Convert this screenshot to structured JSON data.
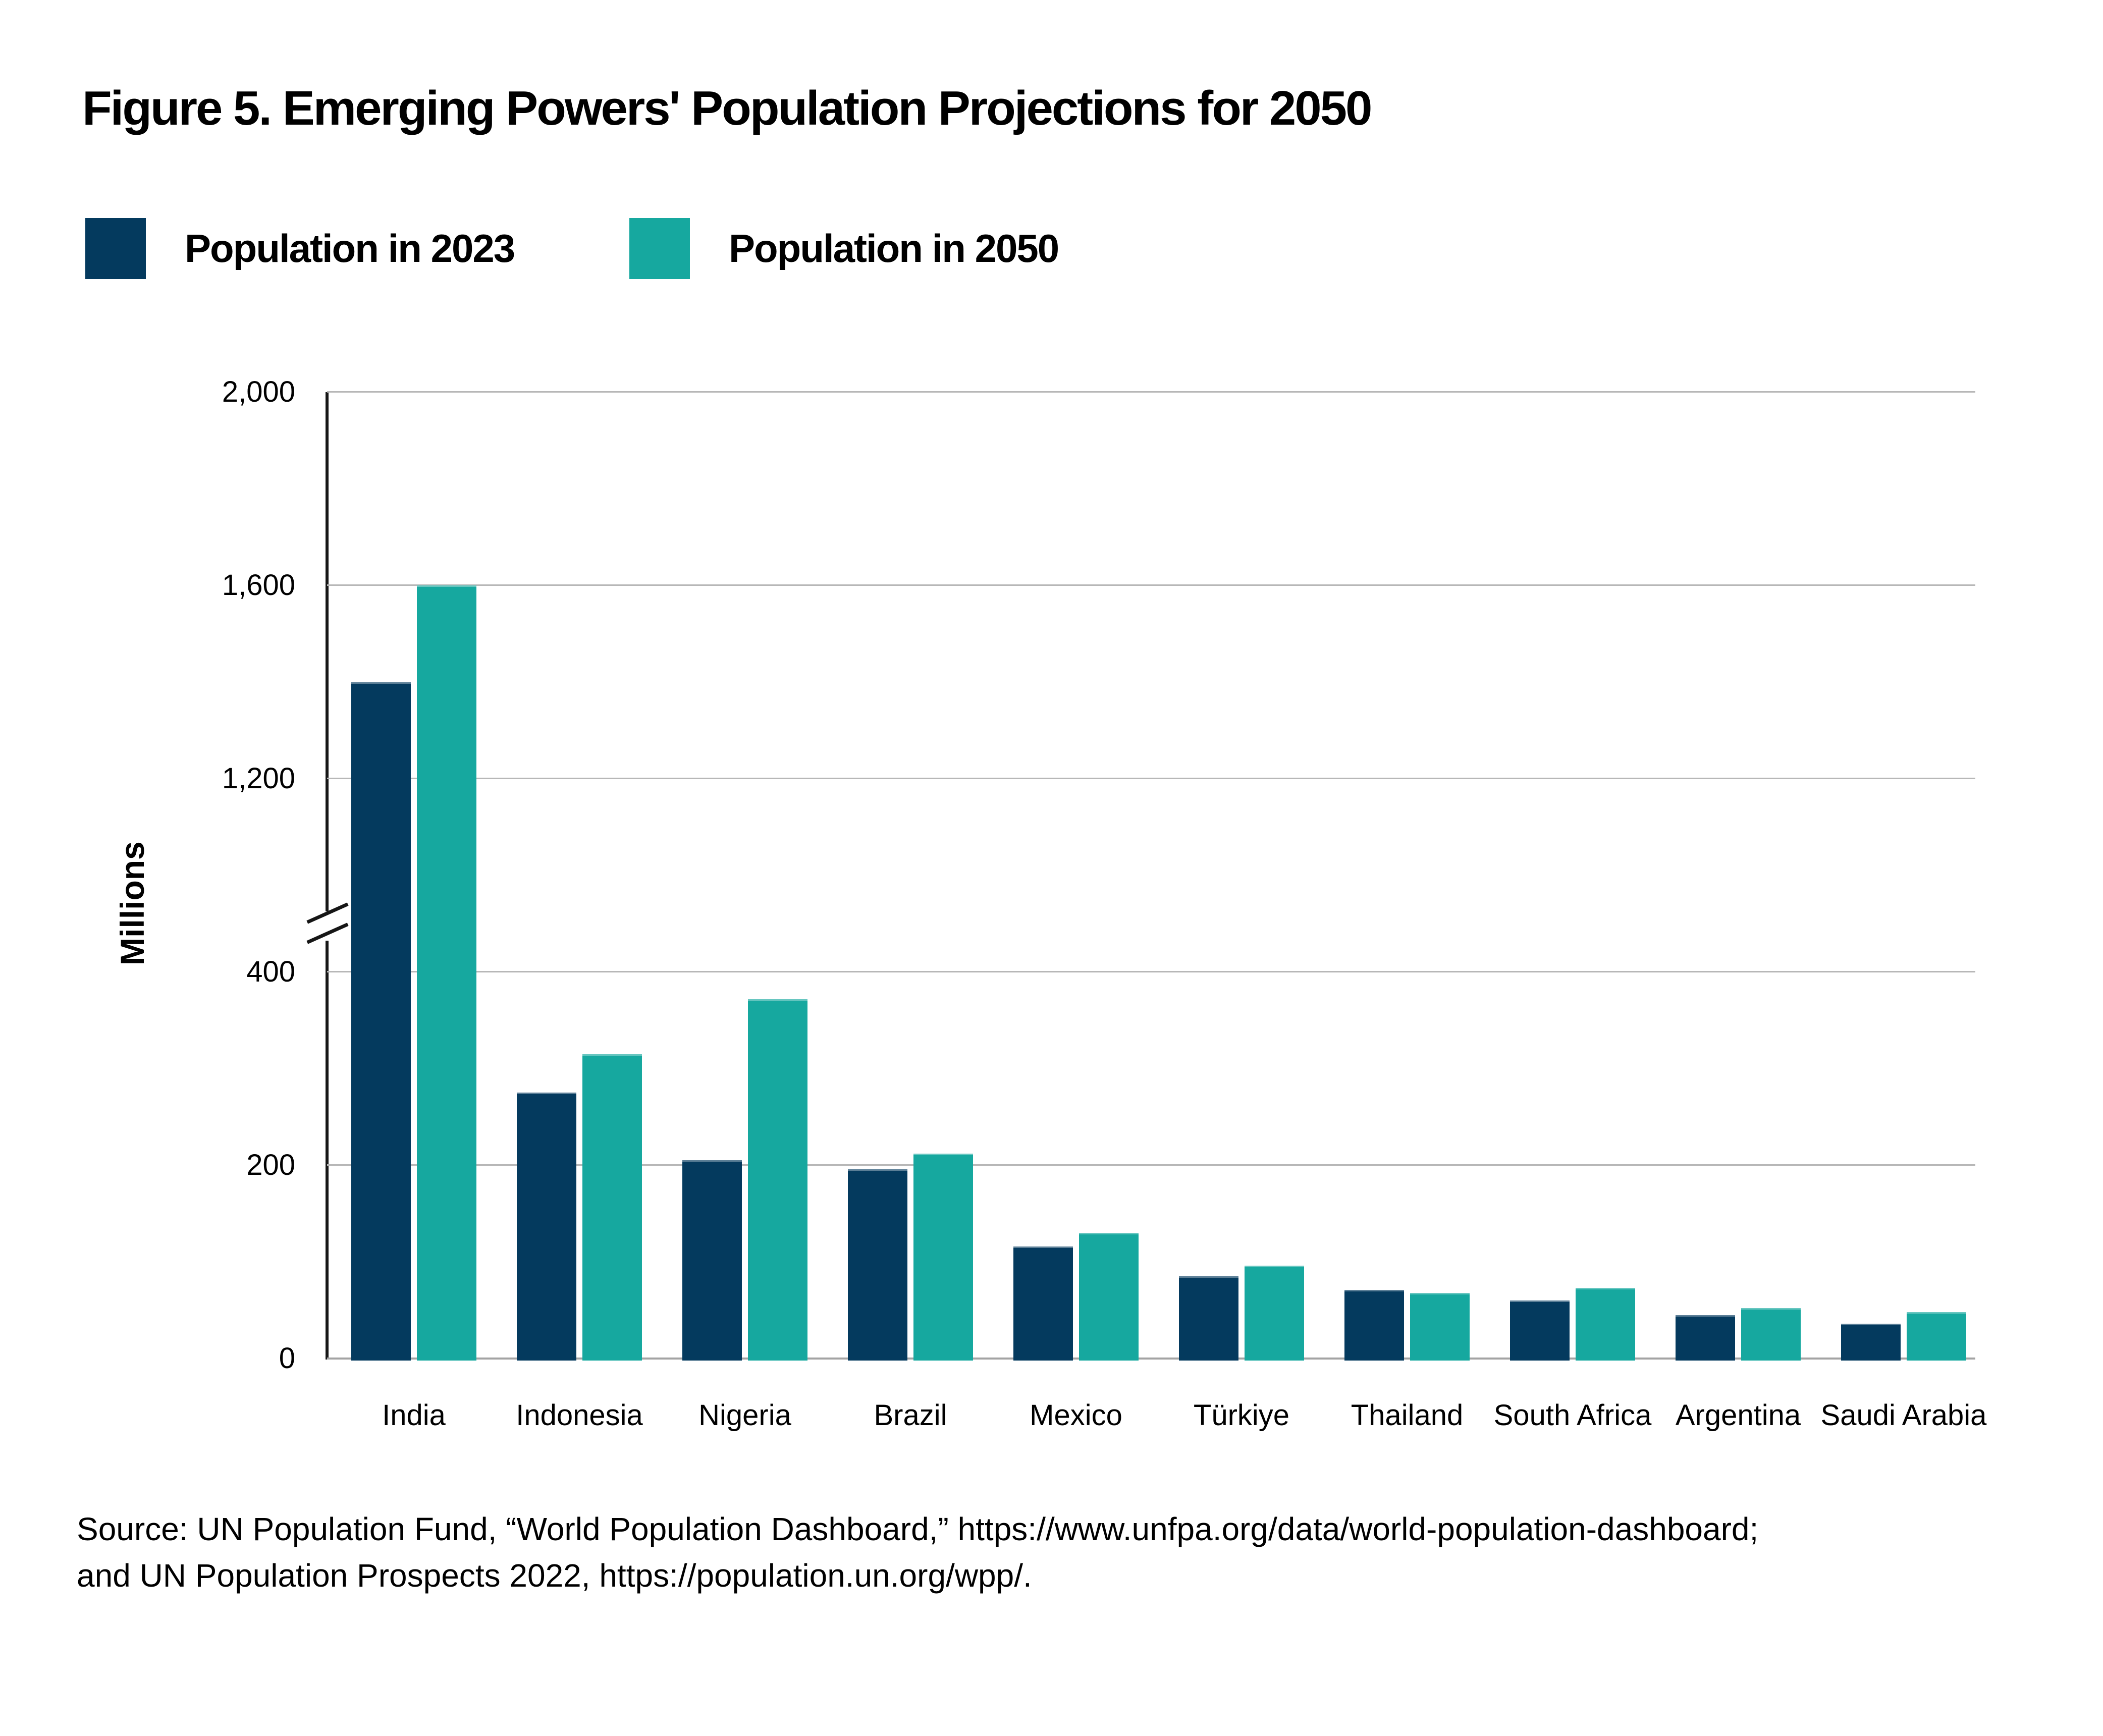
{
  "figure": {
    "title": "Figure 5. Emerging Powers' Population Projections for 2050",
    "source_line1": "Source: UN Population Fund, “World Population Dashboard,” https://www.unfpa.org/data/world-population-dashboard;",
    "source_line2": "and UN Population Prospects 2022,  https://population.un.org/wpp/."
  },
  "legend": {
    "items": [
      {
        "label": "Population in 2023",
        "color": "#043A5E"
      },
      {
        "label": "Population in 2050",
        "color": "#16A89F"
      }
    ],
    "position": "top-left"
  },
  "chart_data": {
    "type": "bar",
    "title": "Figure 5. Emerging Powers' Population Projections for 2050",
    "xlabel": "",
    "ylabel": "Millions",
    "unit": "millions of people",
    "grid": true,
    "legend_position": "top-left",
    "categories": [
      "India",
      "Indonesia",
      "Nigeria",
      "Brazil",
      "Mexico",
      "Türkiye",
      "Thailand",
      "South Africa",
      "Argentina",
      "Saudi Arabia"
    ],
    "series": [
      {
        "name": "Population in 2023",
        "color": "#043A5E",
        "values": [
          1400,
          275,
          205,
          196,
          116,
          85,
          71,
          60,
          45,
          36
        ]
      },
      {
        "name": "Population in 2050",
        "color": "#16A89F",
        "values": [
          1600,
          315,
          372,
          212,
          130,
          96,
          68,
          73,
          52,
          48
        ]
      }
    ],
    "y_axis": {
      "ticks": [
        {
          "value": 0,
          "label": "0"
        },
        {
          "value": 200,
          "label": "200"
        },
        {
          "value": 400,
          "label": "400"
        },
        {
          "value": 1200,
          "label": "1,200"
        },
        {
          "value": 1600,
          "label": "1,600"
        },
        {
          "value": 2000,
          "label": "2,000"
        }
      ],
      "axis_break_between": [
        400,
        1200
      ],
      "ylim": [
        0,
        2000
      ]
    },
    "colors": {
      "gridline": "#b7b7b7",
      "baseline": "#a3a3a3",
      "axis": "#161616",
      "text": "#000000"
    }
  }
}
